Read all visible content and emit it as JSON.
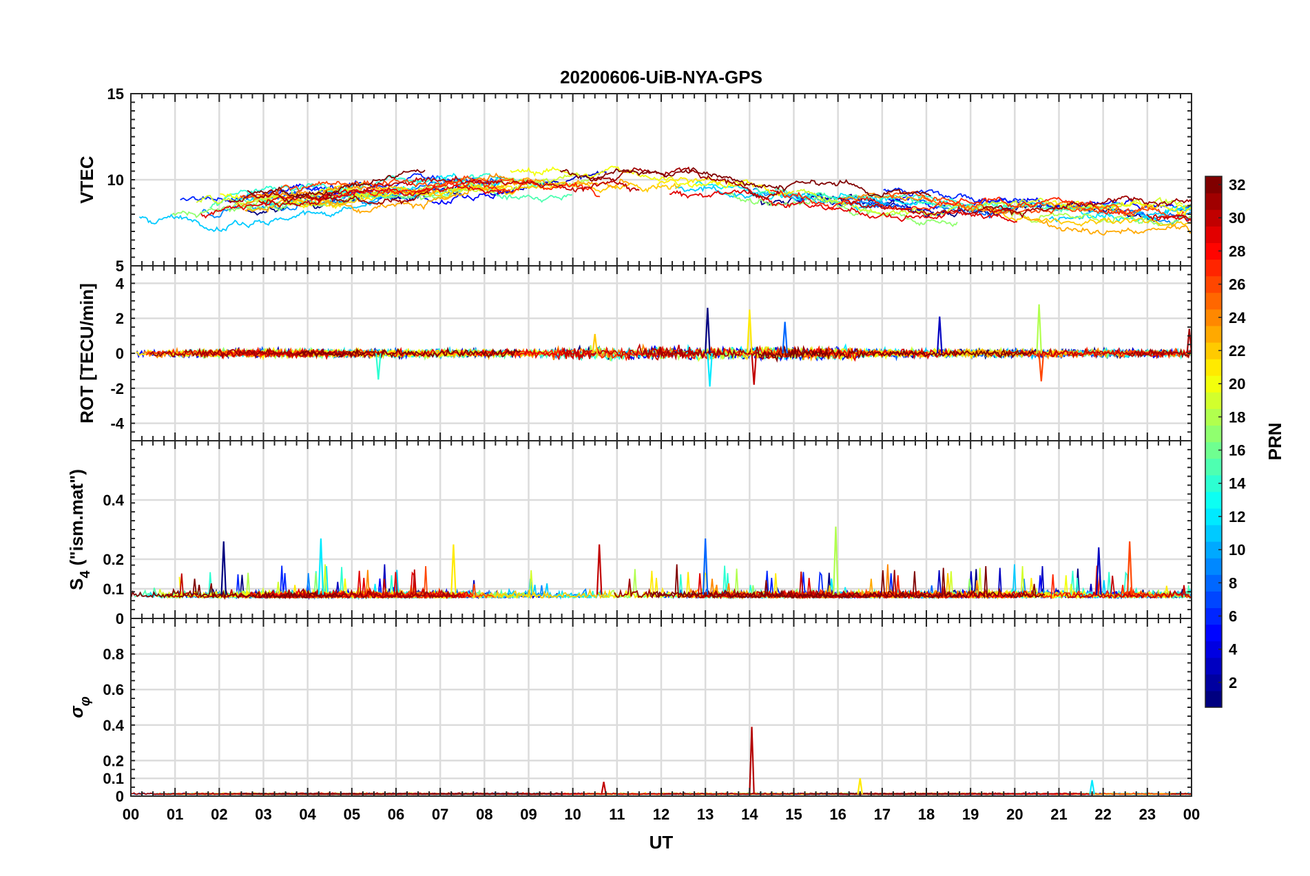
{
  "figure": {
    "title": "20200606-UiB-NYA-GPS",
    "xlabel": "UT"
  },
  "x_tick_labels": [
    "00",
    "01",
    "02",
    "03",
    "04",
    "05",
    "06",
    "07",
    "08",
    "09",
    "10",
    "11",
    "12",
    "13",
    "14",
    "15",
    "16",
    "17",
    "18",
    "19",
    "20",
    "21",
    "22",
    "23",
    "00"
  ],
  "colorbar": {
    "label": "PRN",
    "colormap": "jet",
    "range": [
      1,
      32
    ],
    "tick_labels": [
      "2",
      "4",
      "6",
      "8",
      "10",
      "12",
      "14",
      "16",
      "18",
      "20",
      "22",
      "24",
      "26",
      "28",
      "30",
      "32"
    ]
  },
  "chart_data": [
    {
      "type": "line",
      "panel": "VTEC",
      "ylabel": "VTEC",
      "xlim": [
        0,
        24
      ],
      "ylim": [
        5,
        15
      ],
      "y_tick_labels": [
        "5",
        "10",
        "15"
      ],
      "grid": true,
      "series_note": "one line per GPS PRN, colored by PRN",
      "approx_levels": [
        {
          "prn": 3,
          "level": 8.5
        },
        {
          "prn": 6,
          "level": 8.9
        },
        {
          "prn": 9,
          "level": 9.2
        },
        {
          "prn": 13,
          "level": 9.6
        },
        {
          "prn": 16,
          "level": 9.0
        },
        {
          "prn": 19,
          "level": 8.8
        },
        {
          "prn": 22,
          "level": 8.6
        },
        {
          "prn": 26,
          "level": 9.1
        },
        {
          "prn": 29,
          "level": 9.4
        },
        {
          "prn": 32,
          "level": 9.0
        }
      ]
    },
    {
      "type": "line",
      "panel": "ROT",
      "ylabel": "ROT [TECU/min]",
      "xlim": [
        0,
        24
      ],
      "ylim": [
        -5,
        5
      ],
      "y_tick_labels": [
        "-4",
        "-2",
        "0",
        "2",
        "4"
      ],
      "grid": true,
      "typical_range": [
        -0.6,
        0.6
      ],
      "spikes": [
        {
          "x": 13.05,
          "y": 2.6
        },
        {
          "x": 13.1,
          "y": -1.9
        },
        {
          "x": 14.0,
          "y": 2.5
        },
        {
          "x": 14.1,
          "y": -1.8
        },
        {
          "x": 14.8,
          "y": 1.8
        },
        {
          "x": 20.55,
          "y": 2.8
        },
        {
          "x": 20.6,
          "y": -1.6
        },
        {
          "x": 18.3,
          "y": 2.1
        },
        {
          "x": 5.6,
          "y": -1.5
        },
        {
          "x": 10.5,
          "y": 1.1
        },
        {
          "x": 23.95,
          "y": 1.4
        }
      ]
    },
    {
      "type": "line",
      "panel": "S4",
      "ylabel": "S_4 (\"ism.mat\")",
      "ylabel_base": "S",
      "ylabel_sub": "4",
      "ylabel_rest": " (\"ism.mat\")",
      "xlim": [
        0,
        24
      ],
      "ylim": [
        0,
        0.6
      ],
      "y_tick_labels": [
        "0",
        "0.1",
        "0.2",
        "0.4"
      ],
      "grid": true,
      "typical_range": [
        0.04,
        0.13
      ],
      "peaks": [
        {
          "x": 2.1,
          "y": 0.26
        },
        {
          "x": 4.3,
          "y": 0.27
        },
        {
          "x": 7.3,
          "y": 0.25
        },
        {
          "x": 10.6,
          "y": 0.25
        },
        {
          "x": 13.0,
          "y": 0.27
        },
        {
          "x": 15.95,
          "y": 0.31
        },
        {
          "x": 22.6,
          "y": 0.26
        },
        {
          "x": 21.9,
          "y": 0.24
        }
      ]
    },
    {
      "type": "line",
      "panel": "sigma_phi",
      "ylabel": "σ_φ",
      "ylabel_base": "σ",
      "ylabel_sub": "φ",
      "xlim": [
        0,
        24
      ],
      "ylim": [
        0,
        1
      ],
      "y_tick_labels": [
        "0",
        "0.1",
        "0.2",
        "0.4",
        "0.6",
        "0.8"
      ],
      "grid": true,
      "typical_range": [
        0.005,
        0.03
      ],
      "peaks": [
        {
          "x": 14.05,
          "y": 0.39
        },
        {
          "x": 21.75,
          "y": 0.09
        },
        {
          "x": 16.5,
          "y": 0.1
        },
        {
          "x": 10.7,
          "y": 0.08
        }
      ]
    }
  ]
}
